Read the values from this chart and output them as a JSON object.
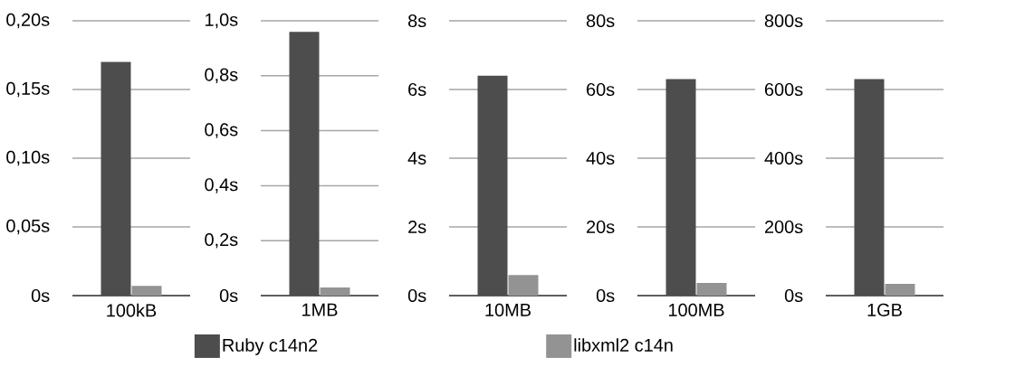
{
  "chart_data": [
    {
      "type": "bar",
      "categories": [
        "100kB"
      ],
      "series": [
        {
          "name": "Ruby c14n2",
          "color": "#4d4d4d",
          "values": [
            0.17
          ]
        },
        {
          "name": "libxml2 c14n",
          "color": "#939393",
          "values": [
            0.007
          ]
        }
      ],
      "ylim": [
        0,
        0.2
      ],
      "yticks": [
        {
          "value": 0,
          "label": "0s"
        },
        {
          "value": 0.05,
          "label": "0,05s"
        },
        {
          "value": 0.1,
          "label": "0,10s"
        },
        {
          "value": 0.15,
          "label": "0,15s"
        },
        {
          "value": 0.2,
          "label": "0,20s"
        }
      ],
      "grid": "y",
      "legend": "bottom"
    },
    {
      "type": "bar",
      "categories": [
        "1MB"
      ],
      "series": [
        {
          "color": "#4d4d4d",
          "values": [
            0.96
          ]
        },
        {
          "color": "#939393",
          "values": [
            0.03
          ]
        }
      ],
      "ylim": [
        0,
        1.0
      ],
      "yticks": [
        {
          "value": 0,
          "label": "0s"
        },
        {
          "value": 0.2,
          "label": "0,2s"
        },
        {
          "value": 0.4,
          "label": "0,4s"
        },
        {
          "value": 0.6,
          "label": "0,6s"
        },
        {
          "value": 0.8,
          "label": "0,8s"
        },
        {
          "value": 1.0,
          "label": "1,0s"
        }
      ],
      "grid": "y"
    },
    {
      "type": "bar",
      "categories": [
        "10MB"
      ],
      "series": [
        {
          "color": "#4d4d4d",
          "values": [
            6.4
          ]
        },
        {
          "color": "#939393",
          "values": [
            0.6
          ]
        }
      ],
      "ylim": [
        0,
        8
      ],
      "yticks": [
        {
          "value": 0,
          "label": "0s"
        },
        {
          "value": 2,
          "label": "2s"
        },
        {
          "value": 4,
          "label": "4s"
        },
        {
          "value": 6,
          "label": "6s"
        },
        {
          "value": 8,
          "label": "8s"
        }
      ],
      "grid": "y"
    },
    {
      "type": "bar",
      "categories": [
        "100MB"
      ],
      "series": [
        {
          "color": "#4d4d4d",
          "values": [
            63
          ]
        },
        {
          "color": "#939393",
          "values": [
            3.7
          ]
        }
      ],
      "ylim": [
        0,
        80
      ],
      "yticks": [
        {
          "value": 0,
          "label": "0s"
        },
        {
          "value": 20,
          "label": "20s"
        },
        {
          "value": 40,
          "label": "40s"
        },
        {
          "value": 60,
          "label": "60s"
        },
        {
          "value": 80,
          "label": "80s"
        }
      ],
      "grid": "y"
    },
    {
      "type": "bar",
      "categories": [
        "1GB"
      ],
      "series": [
        {
          "color": "#4d4d4d",
          "values": [
            630
          ]
        },
        {
          "color": "#939393",
          "values": [
            34
          ]
        }
      ],
      "ylim": [
        0,
        800
      ],
      "yticks": [
        {
          "value": 0,
          "label": "0s"
        },
        {
          "value": 200,
          "label": "200s"
        },
        {
          "value": 400,
          "label": "400s"
        },
        {
          "value": 600,
          "label": "600s"
        },
        {
          "value": 800,
          "label": "800s"
        }
      ],
      "grid": "y"
    }
  ]
}
